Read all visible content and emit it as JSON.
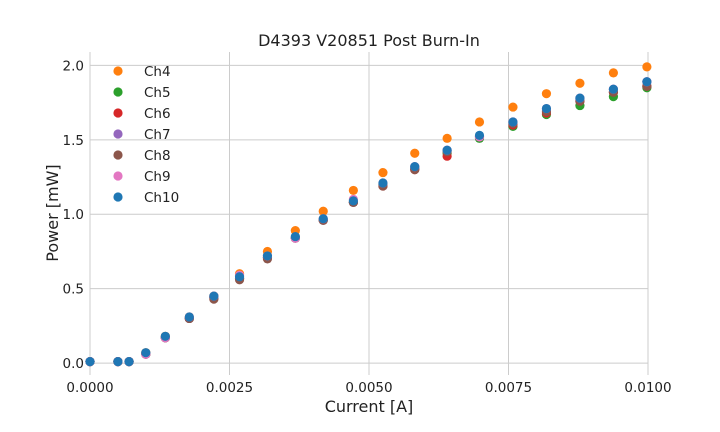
{
  "chart_data": {
    "type": "scatter",
    "title": "D4393 V20851 Post Burn-In",
    "xlabel": "Current [A]",
    "ylabel": "Power [mW]",
    "xlim": [
      0,
      0.01
    ],
    "ylim": [
      -0.08,
      2.09
    ],
    "xticks": [
      0,
      0.0025,
      0.005,
      0.0075,
      0.01
    ],
    "xtick_labels": [
      "0.0000",
      "0.0025",
      "0.0050",
      "0.0075",
      "0.0100"
    ],
    "yticks": [
      0,
      0.5,
      1.0,
      1.5,
      2.0
    ],
    "ytick_labels": [
      "0.0",
      "0.5",
      "1.0",
      "1.5",
      "2.0"
    ],
    "grid": true,
    "legend_position": "upper-left",
    "x": [
      0.0,
      0.0005,
      0.0007,
      0.001,
      0.00135,
      0.00178,
      0.00222,
      0.00268,
      0.00318,
      0.00368,
      0.00418,
      0.00472,
      0.00525,
      0.00582,
      0.0064,
      0.00698,
      0.00758,
      0.00818,
      0.00878,
      0.00938,
      0.00998
    ],
    "series": [
      {
        "name": "Ch4",
        "color": "#ff7f0e",
        "values": [
          0.01,
          0.01,
          0.01,
          0.07,
          0.18,
          0.31,
          0.45,
          0.6,
          0.75,
          0.89,
          1.02,
          1.16,
          1.28,
          1.41,
          1.51,
          1.62,
          1.72,
          1.81,
          1.88,
          1.95,
          1.99
        ]
      },
      {
        "name": "Ch5",
        "color": "#2ca02c",
        "values": [
          0.01,
          0.01,
          0.01,
          0.06,
          0.17,
          0.3,
          0.44,
          0.57,
          0.71,
          0.84,
          0.96,
          1.08,
          1.2,
          1.31,
          1.41,
          1.51,
          1.59,
          1.67,
          1.73,
          1.79,
          1.85
        ]
      },
      {
        "name": "Ch6",
        "color": "#d62728",
        "values": [
          0.01,
          0.01,
          0.01,
          0.06,
          0.17,
          0.3,
          0.44,
          0.57,
          0.71,
          0.84,
          0.96,
          1.08,
          1.19,
          1.3,
          1.39,
          1.52,
          1.6,
          1.68,
          1.76,
          1.82,
          1.86
        ]
      },
      {
        "name": "Ch7",
        "color": "#9467bd",
        "values": [
          0.01,
          0.01,
          0.01,
          0.06,
          0.17,
          0.3,
          0.44,
          0.57,
          0.71,
          0.84,
          0.96,
          1.08,
          1.2,
          1.31,
          1.43,
          1.52,
          1.62,
          1.7,
          1.77,
          1.84,
          1.89
        ]
      },
      {
        "name": "Ch8",
        "color": "#8c564b",
        "values": [
          0.01,
          0.01,
          0.01,
          0.06,
          0.17,
          0.3,
          0.43,
          0.56,
          0.7,
          0.84,
          0.96,
          1.08,
          1.19,
          1.3,
          1.42,
          1.52,
          1.61,
          1.69,
          1.76,
          1.82,
          1.86
        ]
      },
      {
        "name": "Ch9",
        "color": "#e377c2",
        "values": [
          0.01,
          0.01,
          0.01,
          0.06,
          0.17,
          0.31,
          0.45,
          0.59,
          0.72,
          0.84,
          0.97,
          1.1,
          1.21,
          1.32,
          1.43,
          1.52,
          1.62,
          1.71,
          1.78,
          1.84,
          1.89
        ]
      },
      {
        "name": "Ch10",
        "color": "#1f77b4",
        "values": [
          0.01,
          0.01,
          0.01,
          0.07,
          0.18,
          0.31,
          0.45,
          0.58,
          0.72,
          0.85,
          0.97,
          1.09,
          1.21,
          1.32,
          1.43,
          1.53,
          1.62,
          1.71,
          1.78,
          1.84,
          1.89
        ]
      }
    ]
  }
}
